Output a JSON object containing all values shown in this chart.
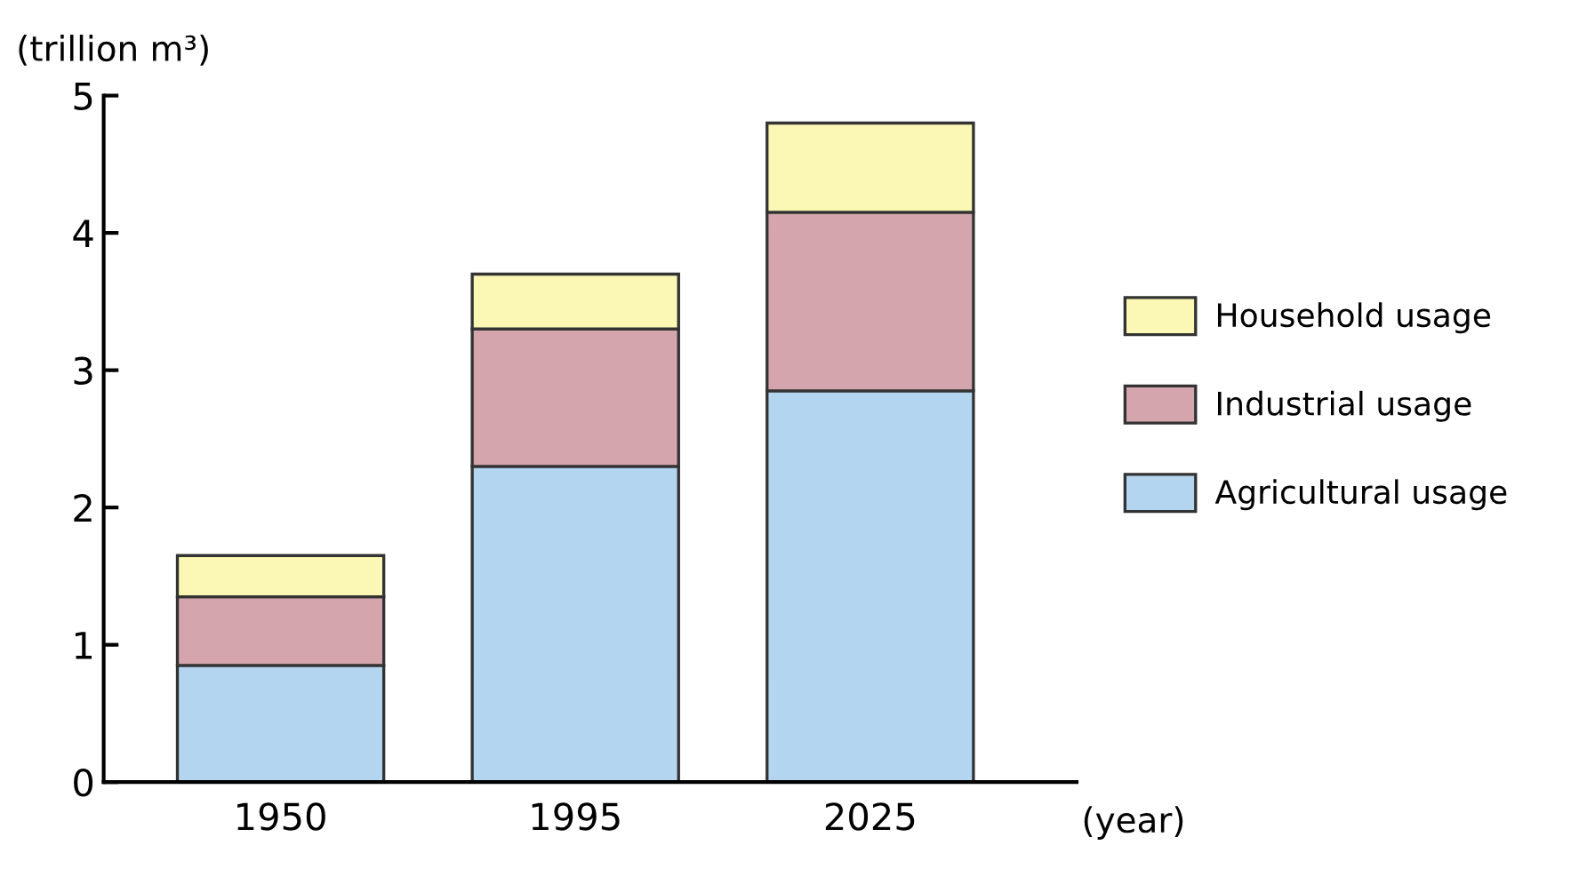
{
  "chart_data": {
    "type": "bar",
    "stacked": true,
    "ylabel": "(trillion m³)",
    "xlabel": "(year)",
    "categories": [
      "1950",
      "1995",
      "2025"
    ],
    "series": [
      {
        "name": "Agricultural usage",
        "color": "#b3d5f0",
        "values": [
          0.85,
          2.3,
          2.85
        ]
      },
      {
        "name": "Industrial usage",
        "color": "#d4a5ad",
        "values": [
          0.5,
          1.0,
          1.3
        ]
      },
      {
        "name": "Household usage",
        "color": "#fbf7b4",
        "values": [
          0.3,
          0.4,
          0.65
        ]
      }
    ],
    "ylim": [
      0,
      5
    ],
    "yticks": [
      0,
      1,
      2,
      3,
      4,
      5
    ],
    "grid": false,
    "legend": "right"
  }
}
